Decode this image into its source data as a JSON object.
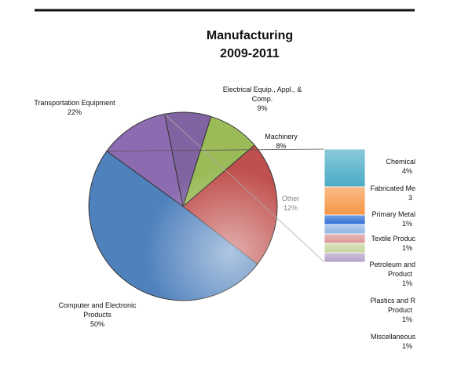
{
  "chart_data": {
    "type": "pie",
    "title": "Manufacturing",
    "subtitle": "2009-2011",
    "slices": [
      {
        "label_lines": [
          "Computer and Electronic",
          "Products"
        ],
        "pct_label": "50%",
        "value": 50,
        "color": "#4f81bd"
      },
      {
        "label_lines": [
          "Transportation Equipment"
        ],
        "pct_label": "22%",
        "value": 22,
        "color": "#c0504d"
      },
      {
        "label_lines": [
          "Electrical Equip., Appl., &",
          "Comp."
        ],
        "pct_label": "9%",
        "value": 9,
        "color": "#9bbb59"
      },
      {
        "label_lines": [
          "Machinery"
        ],
        "pct_label": "8%",
        "value": 8,
        "color": "#8064a2"
      },
      {
        "label_lines": [
          "Other"
        ],
        "pct_label": "12%",
        "value": 12,
        "color": "#8c6bb1"
      }
    ],
    "breakout": {
      "of": "Other",
      "items": [
        {
          "label_lines": [
            "Chemical"
          ],
          "pct_label": "4%",
          "value": 4,
          "color": "#4bacc6"
        },
        {
          "label_lines": [
            "Fabricated Me",
            "3"
          ],
          "pct_label": "",
          "value": 3,
          "color": "#f79646"
        },
        {
          "label_lines": [
            "Primary Metal"
          ],
          "pct_label": "1%",
          "value": 1,
          "color": "#2f6fd6"
        },
        {
          "label_lines": [
            "Textile Produc"
          ],
          "pct_label": "1%",
          "value": 1,
          "color": "#8eb4e3"
        },
        {
          "label_lines": [
            "Petroleum and",
            "Product"
          ],
          "pct_label": "1%",
          "value": 1,
          "color": "#d99694"
        },
        {
          "label_lines": [
            "Plastics and R",
            "Product"
          ],
          "pct_label": "1%",
          "value": 1,
          "color": "#c3d69b"
        },
        {
          "label_lines": [
            "Miscellaneous"
          ],
          "pct_label": "1%",
          "value": 1,
          "color": "#b2a1c7"
        }
      ]
    }
  }
}
